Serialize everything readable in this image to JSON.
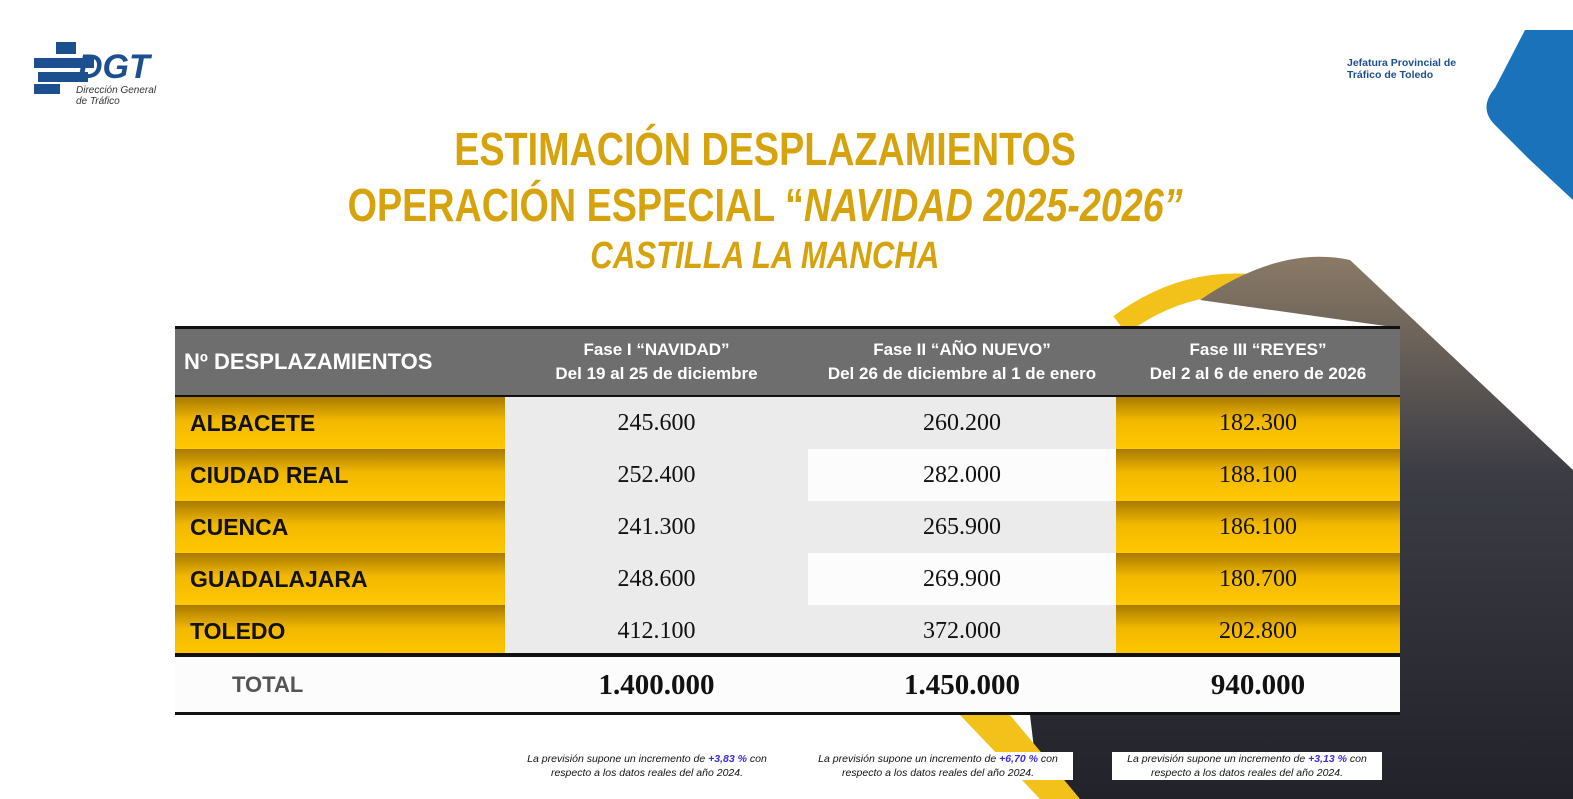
{
  "logo": {
    "acronym": "DGT",
    "line1": "Dirección General",
    "line2": "de Tráfico"
  },
  "office": {
    "line1": "Jefatura Provincial de",
    "line2": "Tráfico de Toledo"
  },
  "title": {
    "line1": "ESTIMACIÓN DESPLAZAMIENTOS",
    "line2_prefix": "OPERACIÓN ESPECIAL “",
    "line2_italic": "NAVIDAD 2025-2026”",
    "line3": "CASTILLA LA MANCHA"
  },
  "table": {
    "corner": "Nº DESPLAZAMIENTOS",
    "columns": [
      {
        "name": "Fase I “NAVIDAD”",
        "dates": "Del 19 al 25 de diciembre"
      },
      {
        "name": "Fase II “AÑO NUEVO”",
        "dates": "Del 26 de diciembre al 1 de enero"
      },
      {
        "name": "Fase III “REYES”",
        "dates": "Del 2 al 6 de enero de 2026"
      }
    ],
    "rows": [
      {
        "province": "ALBACETE",
        "values": [
          "245.600",
          "260.200",
          "182.300"
        ]
      },
      {
        "province": "CIUDAD REAL",
        "values": [
          "252.400",
          "282.000",
          "188.100"
        ]
      },
      {
        "province": "CUENCA",
        "values": [
          "241.300",
          "265.900",
          "186.100"
        ]
      },
      {
        "province": "GUADALAJARA",
        "values": [
          "248.600",
          "269.900",
          "180.700"
        ]
      },
      {
        "province": "TOLEDO",
        "values": [
          "412.100",
          "372.000",
          "202.800"
        ]
      }
    ],
    "total": {
      "label": "TOTAL",
      "values": [
        "1.400.000",
        "1.450.000",
        "940.000"
      ]
    }
  },
  "notes": [
    {
      "before": "La previsión supone un incremento de ",
      "highlight": "+3,83 %",
      "after": " con",
      "line2": "respecto a los datos reales del año 2024."
    },
    {
      "before": "La previsión supone un incremento de ",
      "highlight": "+6,70 %",
      "after": " con",
      "line2": "respecto a los datos reales del año 2024."
    },
    {
      "before": "La previsión supone un incremento de ",
      "highlight": "+3,13 %",
      "after": " con",
      "line2": "respecto a los datos reales del año 2024."
    }
  ]
}
